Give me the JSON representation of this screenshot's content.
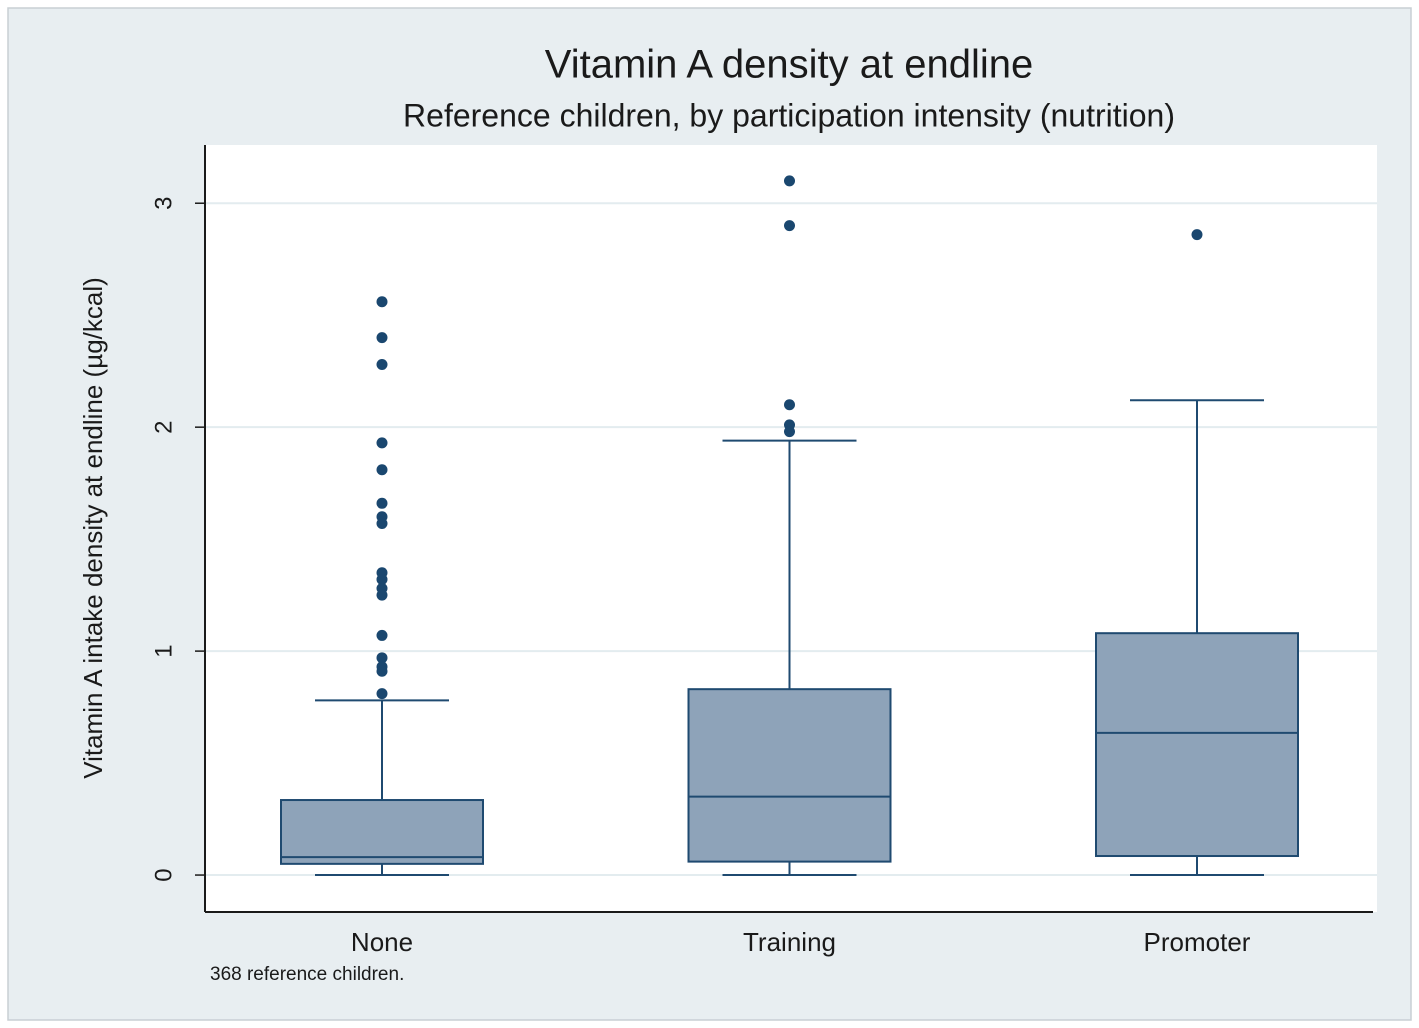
{
  "chart_data": {
    "type": "box",
    "title": "Vitamin A density at endline",
    "subtitle": "Reference children, by participation intensity (nutrition)",
    "y_label": "Vitamin A intake density at endline (µg/kcal)",
    "note": "368 reference children.",
    "categories": [
      "None",
      "Training",
      "Promoter"
    ],
    "boxes": [
      {
        "min": 0,
        "q1": 0.05,
        "median": 0.08,
        "q3": 0.335,
        "max": 0.78,
        "outliers": [
          2.56,
          2.4,
          2.28,
          1.93,
          1.81,
          1.66,
          1.6,
          1.57,
          1.35,
          1.32,
          1.28,
          1.25,
          1.07,
          0.97,
          0.93,
          0.91,
          0.81
        ]
      },
      {
        "min": 0,
        "q1": 0.06,
        "median": 0.35,
        "q3": 0.83,
        "max": 1.94,
        "outliers": [
          3.1,
          2.9,
          2.1,
          2.01,
          1.98
        ]
      },
      {
        "min": 0,
        "q1": 0.085,
        "median": 0.635,
        "q3": 1.08,
        "max": 2.12,
        "outliers": [
          2.86
        ]
      }
    ],
    "color": "#8ea3b9",
    "edge_color": "#1f4a70",
    "outlier_color": "#1a476f",
    "ylim": [
      -0.165,
      3.26
    ],
    "yticks": [
      0,
      1,
      2,
      3
    ],
    "grid": true
  }
}
